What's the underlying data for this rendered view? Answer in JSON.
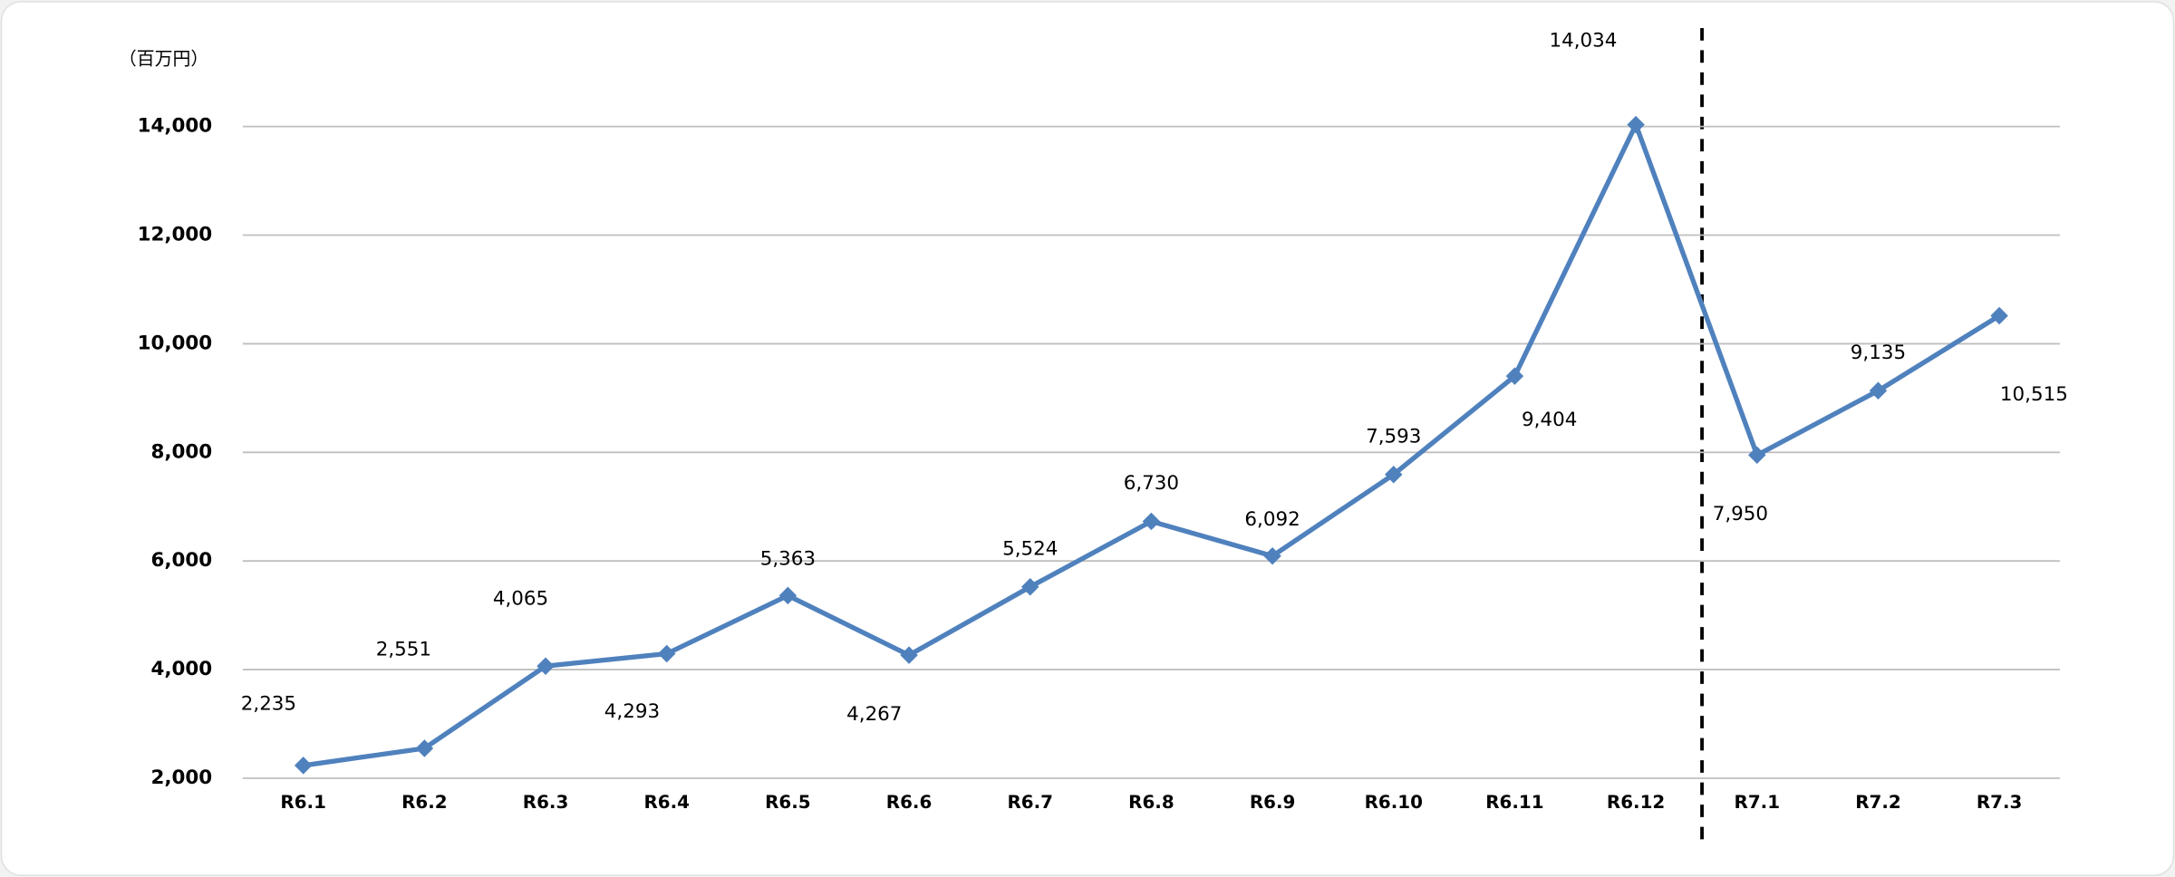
{
  "chart_data": {
    "type": "line",
    "y_unit_label": "（百万円）",
    "categories": [
      "R6.1",
      "R6.2",
      "R6.3",
      "R6.4",
      "R6.5",
      "R6.6",
      "R6.7",
      "R6.8",
      "R6.9",
      "R6.10",
      "R6.11",
      "R6.12",
      "R7.1",
      "R7.2",
      "R7.3"
    ],
    "series": [
      {
        "color": "#4f81bd",
        "values": [
          2235,
          2551,
          4065,
          4293,
          5363,
          4267,
          5524,
          6730,
          6092,
          7593,
          9404,
          14034,
          7950,
          9135,
          10515
        ],
        "value_labels": [
          "2,235",
          "2,551",
          "4,065",
          "4,293",
          "5,363",
          "4,267",
          "5,524",
          "6,730",
          "6,092",
          "7,593",
          "9,404",
          "14,034",
          "7,950",
          "9,135",
          "10,515"
        ]
      }
    ],
    "ylim": [
      2000,
      14000
    ],
    "yticks": [
      {
        "value": 2000,
        "label": "2,000"
      },
      {
        "value": 4000,
        "label": "4,000"
      },
      {
        "value": 6000,
        "label": "6,000"
      },
      {
        "value": 8000,
        "label": "8,000"
      },
      {
        "value": 10000,
        "label": "10,000"
      },
      {
        "value": 12000,
        "label": "12,000"
      },
      {
        "value": 14000,
        "label": "14,000"
      }
    ],
    "grid": true
  }
}
